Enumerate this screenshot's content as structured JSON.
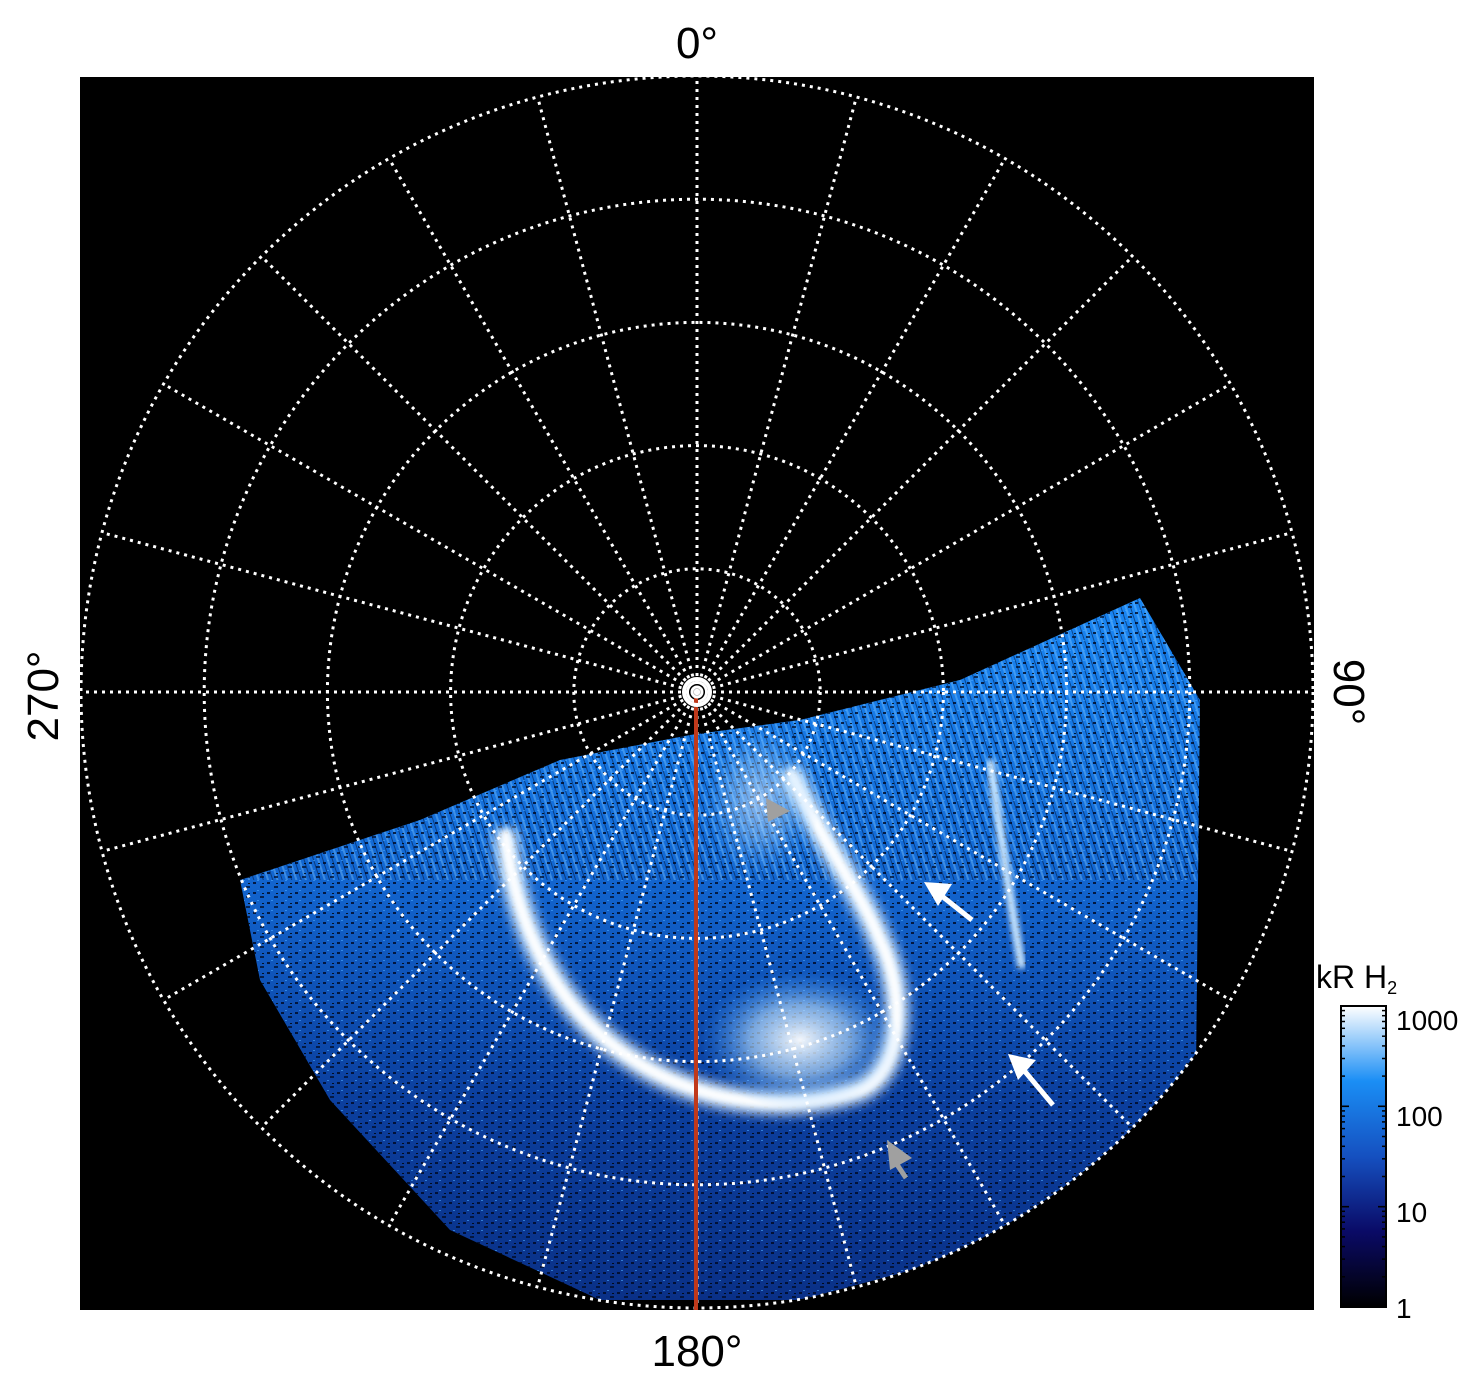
{
  "axis_labels": {
    "top": "0°",
    "bottom": "180°",
    "left": "270°",
    "right": "90°"
  },
  "colorbar": {
    "title": "kR H",
    "title_subscript": "2",
    "ticks": [
      "1000",
      "100",
      "10",
      "1"
    ],
    "tick_values": [
      1000,
      100,
      10,
      1
    ],
    "scale": "log"
  },
  "colors": {
    "background": "#000000",
    "grid": "#ffffff",
    "meridian_line": "#c0391b",
    "aurora_low": "#000a3a",
    "aurora_mid": "#1477e8",
    "aurora_high": "#ffffff",
    "arrow_white": "#ffffff",
    "arrow_gray": "#a0a0a0"
  },
  "projection": {
    "type": "polar",
    "rings": 5,
    "spokes_deg": 15
  }
}
